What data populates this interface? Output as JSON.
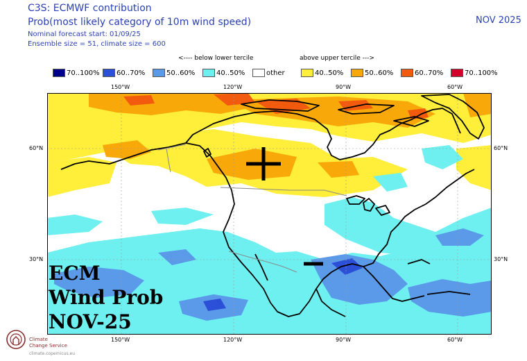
{
  "header": {
    "title": "C3S: ECMWF contribution",
    "subtitle": "Prob(most likely category of 10m wind speed)",
    "forecast_start": "Nominal forecast start: 01/09/25",
    "ensemble": "Ensemble size = 51, climate size = 600",
    "month": "NOV 2025"
  },
  "legend": {
    "below_label": "<---- below lower tercile",
    "above_label": "above upper tercile --->",
    "items": [
      {
        "label": "70..100%",
        "color": "#00008c"
      },
      {
        "label": "60..70%",
        "color": "#2b4fd6"
      },
      {
        "label": "50..60%",
        "color": "#5a9ae8"
      },
      {
        "label": "40..50%",
        "color": "#6ff0f0"
      },
      {
        "label": "other",
        "color": "#ffffff"
      },
      {
        "label": "40..50%",
        "color": "#ffee3a"
      },
      {
        "label": "50..60%",
        "color": "#f9a80a"
      },
      {
        "label": "60..70%",
        "color": "#f25a0e"
      },
      {
        "label": "70..100%",
        "color": "#d3002b"
      }
    ]
  },
  "axes": {
    "lon_top": [
      "150°W",
      "120°W",
      "90°W",
      "60°W"
    ],
    "lon_bottom": [
      "150°W",
      "120°W",
      "90°W",
      "60°W"
    ],
    "lat_left": [
      "60°N",
      "30°N"
    ],
    "lat_right": [
      "60°N",
      "30°N"
    ]
  },
  "overlay": {
    "line1": "ECM",
    "line2": "Wind Prob",
    "line3": "NOV-25"
  },
  "org": {
    "name1": "Climate",
    "name2": "Change Service",
    "url": "climate.copernicus.eu"
  }
}
